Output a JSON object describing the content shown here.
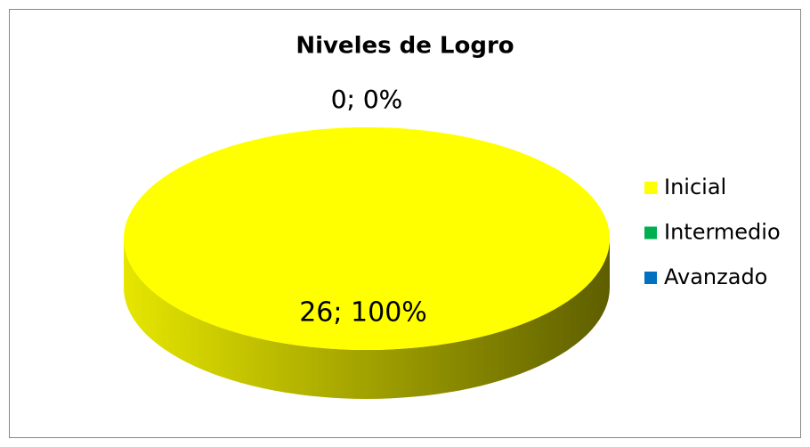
{
  "chart_data": {
    "type": "pie",
    "title": "Niveles de Logro",
    "categories": [
      "Inicial",
      "Intermedio",
      "Avanzado"
    ],
    "values": [
      26,
      0,
      0
    ],
    "value_labels": [
      "26; 100%",
      "0; 0%",
      "0; 0%"
    ],
    "colors": [
      "#ffff00",
      "#00b050",
      "#0070c0"
    ],
    "legend": "right"
  }
}
